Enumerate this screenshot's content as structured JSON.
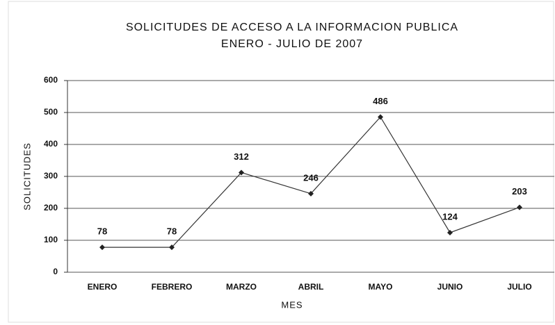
{
  "chart_data": {
    "type": "line",
    "title": "SOLICITUDES DE ACCESO A LA INFORMACION PUBLICA",
    "subtitle": "ENERO - JULIO DE 2007",
    "x_label": "MES",
    "y_label": "SOLICITUDES",
    "categories": [
      "ENERO",
      "FEBRERO",
      "MARZO",
      "ABRIL",
      "MAYO",
      "JUNIO",
      "JULIO"
    ],
    "values": [
      78,
      78,
      312,
      246,
      486,
      124,
      203
    ],
    "color": "#333333",
    "ylim": [
      0,
      600
    ],
    "yticks": [
      0,
      100,
      200,
      300,
      400,
      500,
      600
    ],
    "grid": true
  }
}
